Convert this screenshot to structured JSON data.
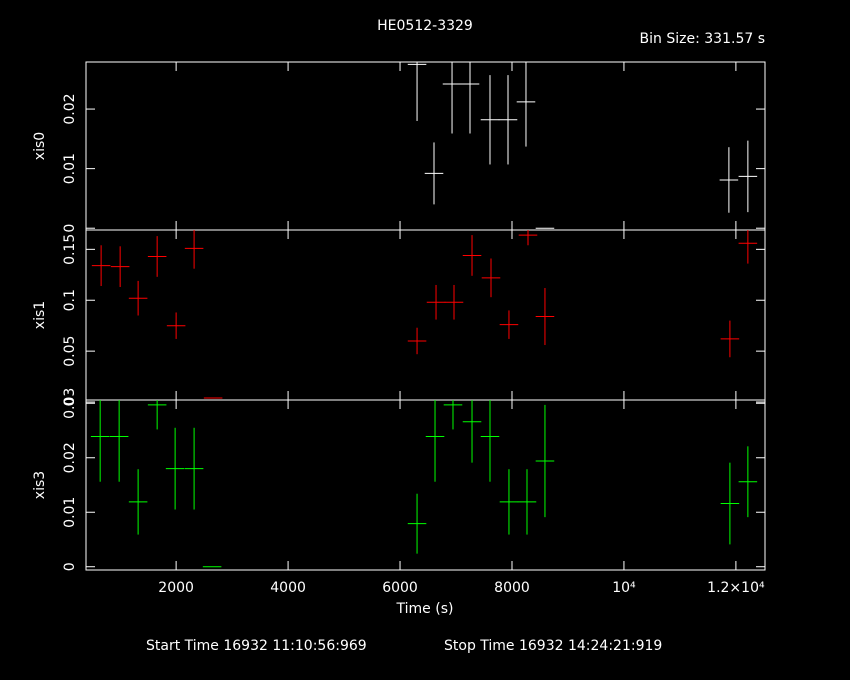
{
  "chart_data": [
    {
      "type": "scatter",
      "title": "HE0512-3329",
      "annotation": "Bin Size: 331.57 s",
      "y_label": "xis0",
      "color": "#ffffff",
      "xlim": [
        390,
        12520
      ],
      "xticks": [
        2000,
        4000,
        6000,
        8000,
        10000,
        12000
      ],
      "ylim": [
        -0.0003,
        0.0279
      ],
      "yticks": [
        0,
        0.01,
        0.02
      ],
      "xerr": 165.785,
      "x": [
        6304,
        6607,
        6929,
        7250,
        7607,
        7929,
        8250,
        8589,
        11875,
        12214
      ],
      "values": [
        0.0275,
        0.0092,
        0.0242,
        0.0242,
        0.0182,
        0.0182,
        0.0212,
        0,
        0.0081,
        0.0087
      ],
      "yerr": [
        0.0095,
        0.0052,
        0.0083,
        0.0083,
        0.0075,
        0.0075,
        0.0075,
        0,
        0.0055,
        0.006
      ]
    },
    {
      "type": "scatter",
      "y_label": "xis1",
      "color": "#ff0000",
      "xlim": [
        390,
        12520
      ],
      "xticks": [
        2000,
        4000,
        6000,
        8000,
        10000,
        12000
      ],
      "ylim": [
        0.002,
        0.169
      ],
      "yticks": [
        0,
        0.05,
        0.1,
        0.15
      ],
      "xerr": 165.785,
      "x": [
        660,
        1000,
        1321,
        1661,
        2000,
        2321,
        2661,
        6304,
        6643,
        6964,
        7286,
        7625,
        7946,
        8286,
        8589,
        11893,
        12214
      ],
      "values": [
        0.134,
        0.133,
        0.102,
        0.143,
        0.075,
        0.151,
        0.004,
        0.06,
        0.098,
        0.098,
        0.144,
        0.122,
        0.076,
        0.164,
        0.084,
        0.062,
        0.156
      ],
      "yerr": [
        0.02,
        0.02,
        0.017,
        0.02,
        0.013,
        0.02,
        0,
        0.013,
        0.017,
        0.017,
        0.02,
        0.019,
        0.014,
        0.01,
        0.028,
        0.018,
        0.02
      ]
    },
    {
      "type": "scatter",
      "y_label": "xis3",
      "x_label": "Time (s)",
      "color": "#00ff00",
      "xlim": [
        390,
        12520
      ],
      "xticks": [
        2000,
        4000,
        6000,
        8000,
        {
          "value": 10000,
          "label": "10⁴"
        },
        {
          "value": 12000,
          "label": "1.2×10⁴"
        }
      ],
      "ylim": [
        -0.0006,
        0.0306
      ],
      "yticks": [
        0,
        0.01,
        0.02,
        0.03
      ],
      "xerr": 165.785,
      "x": [
        643,
        982,
        1321,
        1661,
        1982,
        2321,
        2643,
        6304,
        6625,
        6946,
        7286,
        7607,
        7946,
        8268,
        8589,
        11893,
        12214
      ],
      "values": [
        0.0239,
        0.0239,
        0.0119,
        0.0297,
        0.018,
        0.018,
        0,
        0.0079,
        0.0239,
        0.0297,
        0.0266,
        0.0239,
        0.0119,
        0.0119,
        0.0194,
        0.0116,
        0.0156
      ],
      "yerr": [
        0.0083,
        0.0083,
        0.006,
        0.0045,
        0.0075,
        0.0075,
        0,
        0.0055,
        0.0083,
        0.0045,
        0.0075,
        0.0083,
        0.006,
        0.006,
        0.0103,
        0.0075,
        0.0065
      ]
    }
  ],
  "footer": {
    "start": "Start Time 16932 11:10:56:969",
    "stop": "Stop Time 16932 14:24:21:919"
  }
}
